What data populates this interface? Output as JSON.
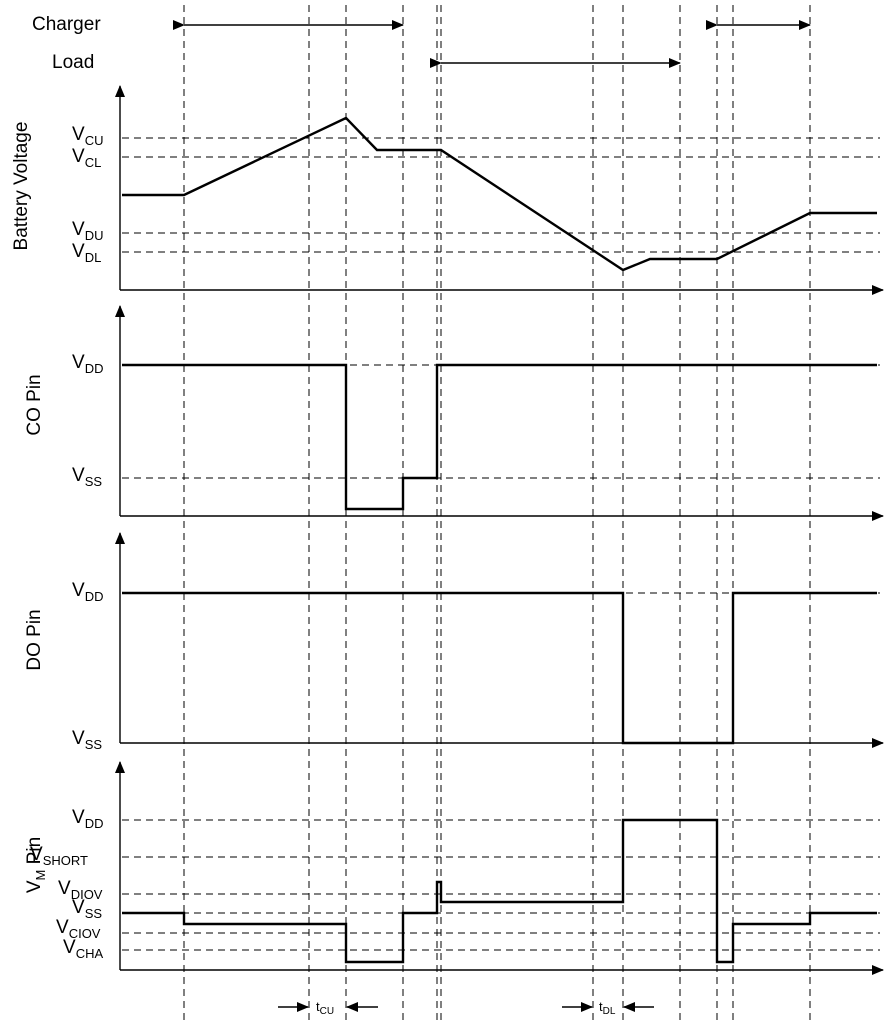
{
  "legend": {
    "charger": "Charger",
    "load": "Load"
  },
  "panels": {
    "battery": {
      "ylabel": "Battery Voltage",
      "levels": [
        {
          "base": "V",
          "sub": "CU"
        },
        {
          "base": "V",
          "sub": "CL"
        },
        {
          "base": "V",
          "sub": "DU"
        },
        {
          "base": "V",
          "sub": "DL"
        }
      ]
    },
    "co": {
      "ylabel": "CO Pin",
      "levels": [
        {
          "base": "V",
          "sub": "DD"
        },
        {
          "base": "V",
          "sub": "SS"
        }
      ]
    },
    "do": {
      "ylabel": "DO Pin",
      "levels": [
        {
          "base": "V",
          "sub": "DD"
        },
        {
          "base": "V",
          "sub": "SS"
        }
      ]
    },
    "vm": {
      "ylabel_base": "V",
      "ylabel_sub": "M",
      "ylabel_rest": " Pin",
      "levels": [
        {
          "base": "V",
          "sub": "DD"
        },
        {
          "base": "V",
          "sub": "SHORT"
        },
        {
          "base": "V",
          "sub": "DIOV"
        },
        {
          "base": "V",
          "sub": "SS"
        },
        {
          "base": "V",
          "sub": "CIOV"
        },
        {
          "base": "V",
          "sub": "CHA"
        }
      ]
    }
  },
  "delays": {
    "tcu": {
      "base": "t",
      "sub": "CU"
    },
    "tdl": {
      "base": "t",
      "sub": "DL"
    }
  }
}
